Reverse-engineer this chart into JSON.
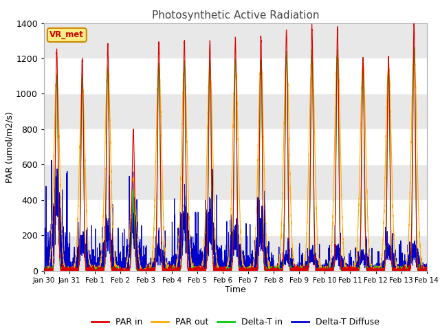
{
  "title": "Photosynthetic Active Radiation",
  "xlabel": "Time",
  "ylabel": "PAR (umol/m2/s)",
  "ylim": [
    0,
    1400
  ],
  "yticks": [
    0,
    200,
    400,
    600,
    800,
    1000,
    1200,
    1400
  ],
  "xtick_labels": [
    "Jan 30",
    "Jan 31",
    "Feb 1",
    "Feb 2",
    "Feb 3",
    "Feb 4",
    "Feb 5",
    "Feb 6",
    "Feb 7",
    "Feb 8",
    "Feb 9",
    "Feb 10",
    "Feb 11",
    "Feb 12",
    "Feb 13",
    "Feb 14"
  ],
  "legend_labels": [
    "PAR in",
    "PAR out",
    "Delta-T in",
    "Delta-T Diffuse"
  ],
  "line_colors": [
    "#dd0000",
    "#ffaa00",
    "#00cc00",
    "#0000cc"
  ],
  "watermark_text": "VR_met",
  "watermark_bg": "#ffee88",
  "watermark_border": "#cc8800",
  "background_color": "#ffffff",
  "plot_bg_color": "#ffffff",
  "band_color": "#e8e8e8",
  "n_days": 15,
  "peak_par_in": [
    1250,
    1200,
    1270,
    800,
    1300,
    1300,
    1300,
    1310,
    1320,
    1360,
    1380,
    1370,
    1200,
    1200,
    1400
  ],
  "peak_par_out": [
    1100,
    1050,
    1150,
    520,
    1150,
    1150,
    1160,
    1170,
    1170,
    1210,
    1220,
    1230,
    1170,
    1150,
    1240
  ],
  "peak_delta_in": [
    1100,
    1100,
    1150,
    450,
    1170,
    1180,
    1180,
    1190,
    1190,
    1230,
    1240,
    1250,
    1180,
    1160,
    1260
  ],
  "peak_delta_diff": [
    380,
    160,
    230,
    260,
    110,
    280,
    280,
    200,
    200,
    75,
    90,
    100,
    80,
    110,
    110
  ]
}
